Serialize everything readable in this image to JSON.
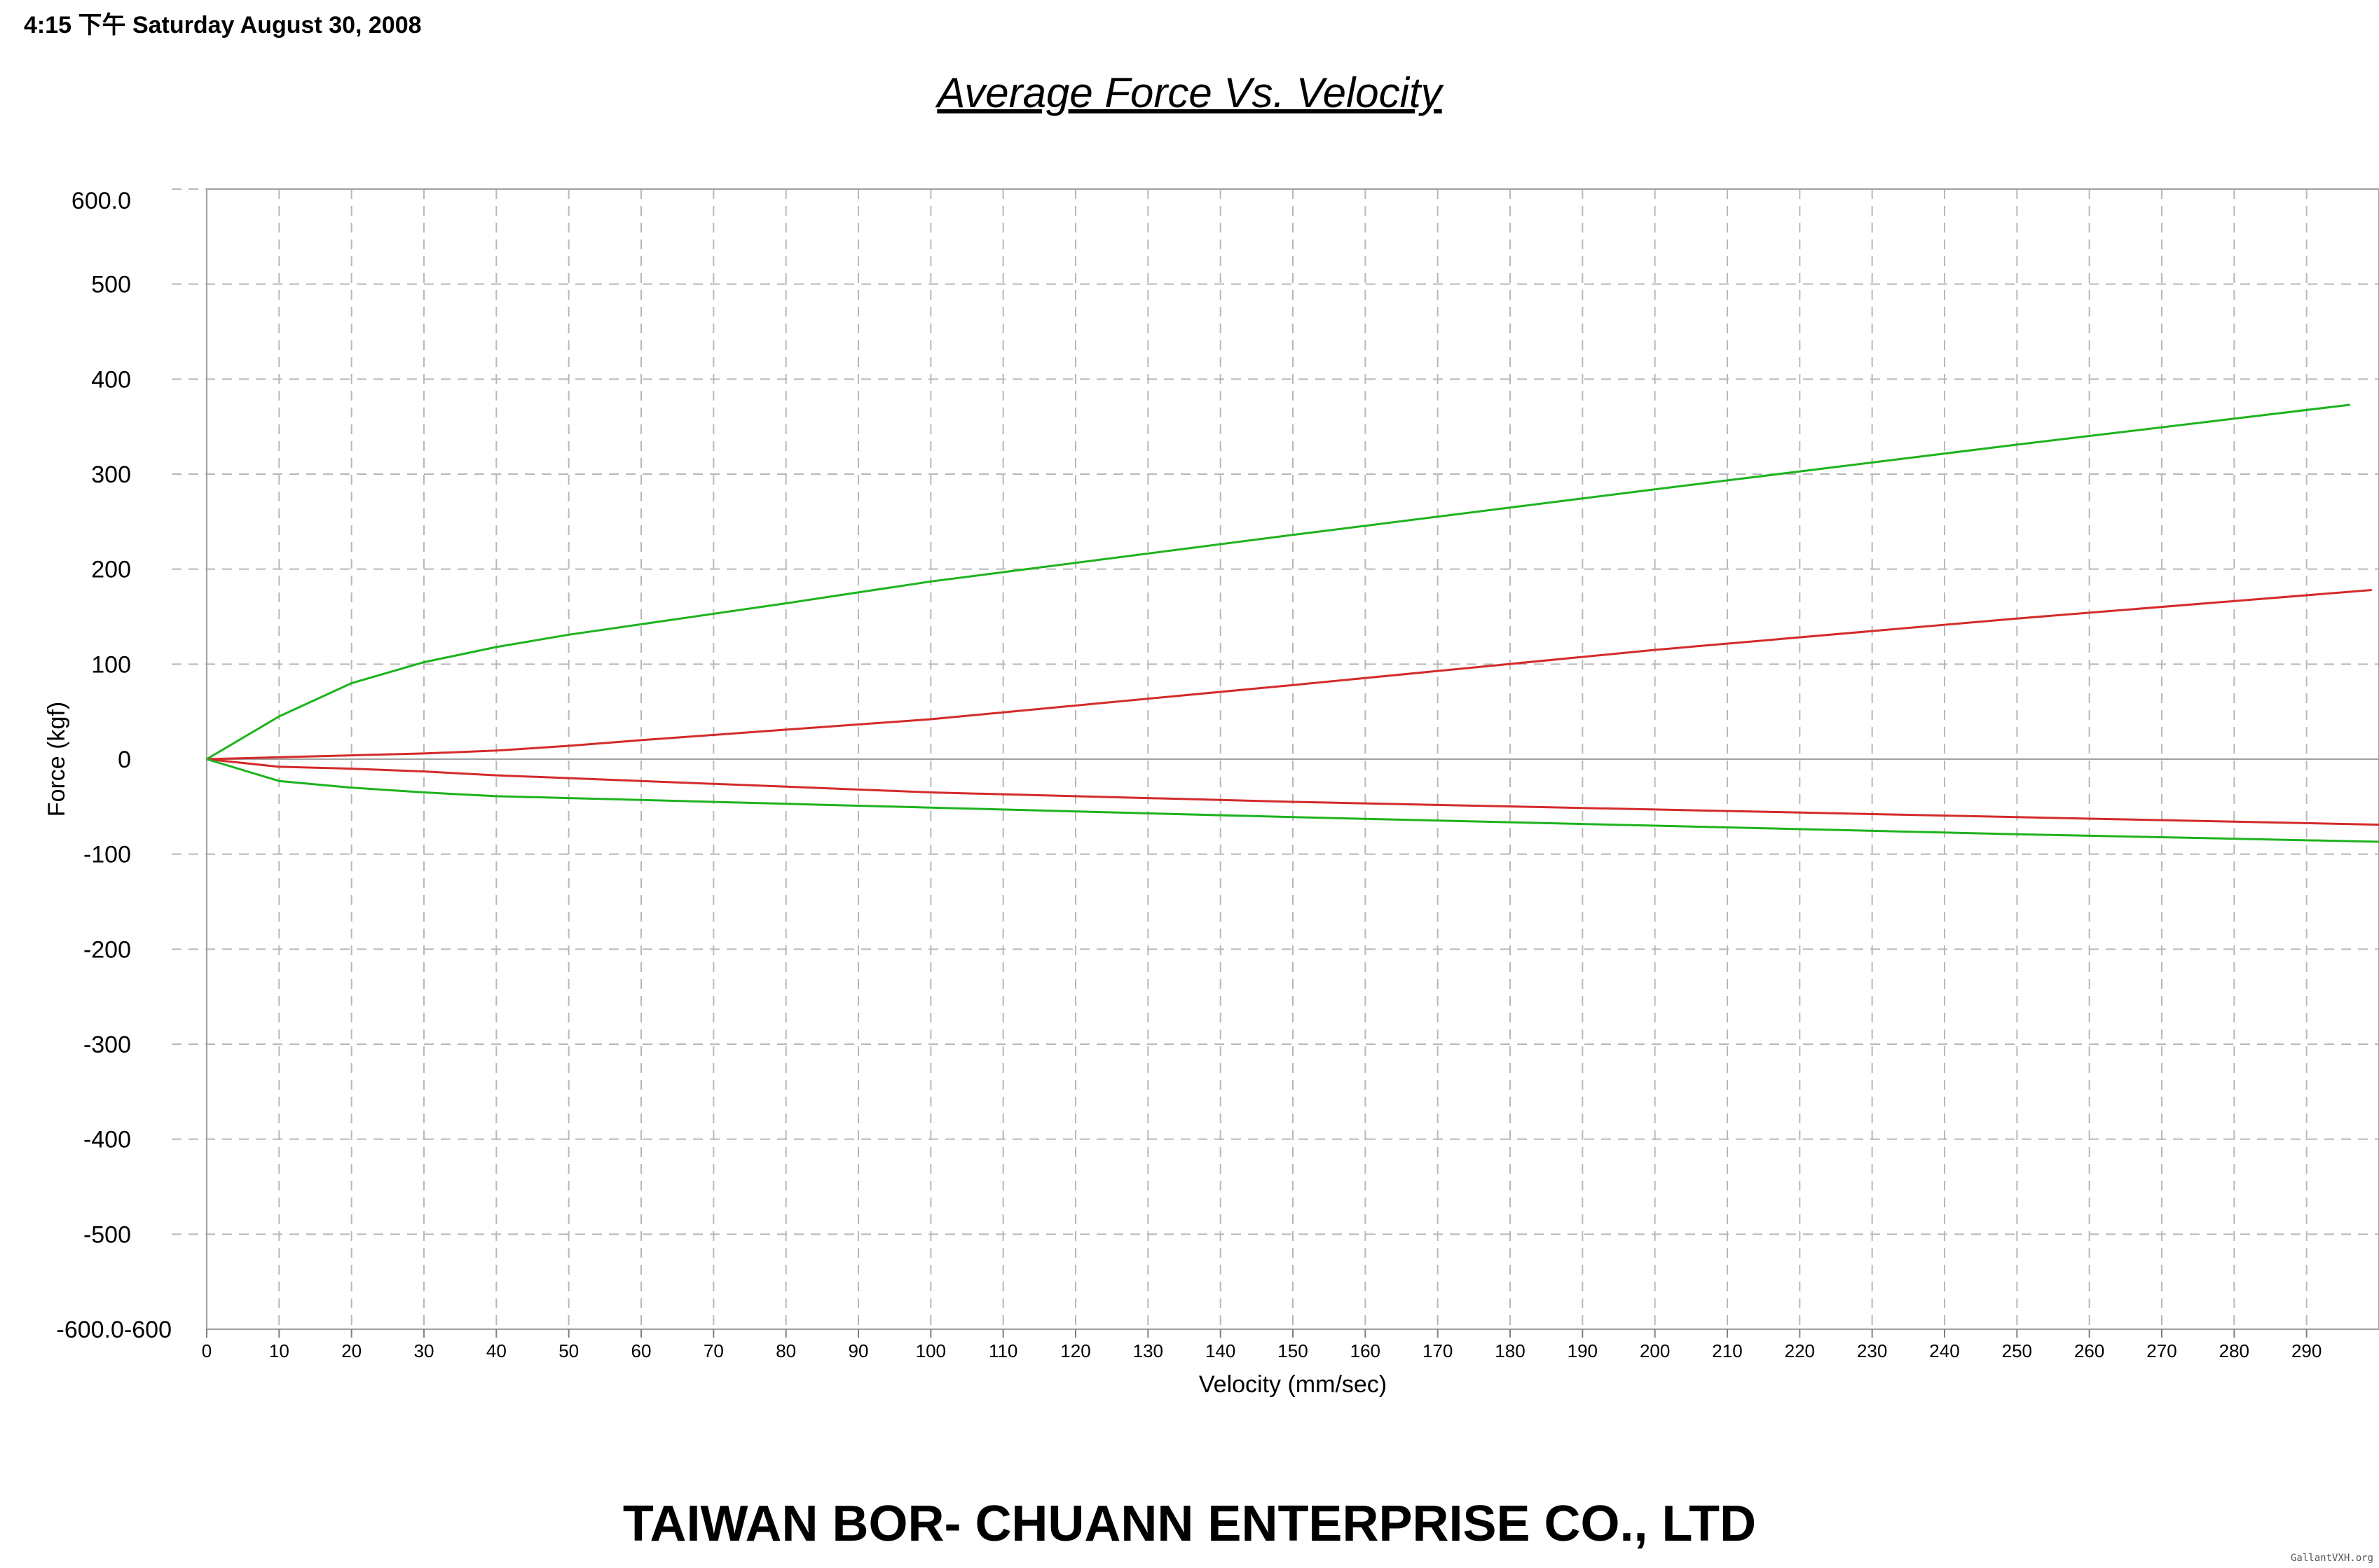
{
  "header": {
    "timestamp": "4:15 下午 Saturday August 30, 2008"
  },
  "footer": {
    "company": "TAIWAN BOR- CHUANN ENTERPRISE CO., LTD",
    "watermark": "GallantVXH.org"
  },
  "chart_data": {
    "type": "line",
    "title": "Average Force Vs. Velocity",
    "xlabel": "Velocity (mm/sec)",
    "ylabel": "Force (kgf)",
    "xlim": [
      0,
      300
    ],
    "ylim": [
      -600,
      600
    ],
    "grid": true,
    "legend": "none",
    "x_ticks": [
      0,
      10,
      20,
      30,
      40,
      50,
      60,
      70,
      80,
      90,
      100,
      110,
      120,
      130,
      140,
      150,
      160,
      170,
      180,
      190,
      200,
      210,
      220,
      230,
      240,
      250,
      260,
      270,
      280,
      290
    ],
    "x_tick_labels": [
      "0",
      "10",
      "20",
      "30",
      "40",
      "50",
      "60",
      "70",
      "80",
      "90",
      "100",
      "110",
      "120",
      "130",
      "140",
      "150",
      "160",
      "170",
      "180",
      "190",
      "200",
      "210",
      "220",
      "230",
      "240",
      "250",
      "260",
      "270",
      "280",
      "290"
    ],
    "y_ticks": [
      600,
      500,
      400,
      300,
      200,
      100,
      0,
      -100,
      -200,
      -300,
      -400,
      -500,
      -600
    ],
    "y_tick_labels": [
      "600.0",
      "500",
      "400",
      "300",
      "200",
      "100",
      "0",
      "-100",
      "-200",
      "-300",
      "-400",
      "-500",
      "-600.0-600"
    ],
    "series": [
      {
        "color": "#1db31d",
        "x": [
          0,
          10,
          20,
          30,
          40,
          50,
          60,
          80,
          100,
          150,
          200,
          250,
          296
        ],
        "y": [
          0,
          45,
          80,
          102,
          118,
          131,
          142,
          164,
          187,
          236,
          284,
          331,
          373
        ]
      },
      {
        "color": "#d42a2a",
        "x": [
          0,
          10,
          20,
          30,
          40,
          50,
          60,
          80,
          100,
          150,
          200,
          250,
          299
        ],
        "y": [
          0,
          2,
          4,
          6,
          9,
          14,
          20,
          31,
          42,
          78,
          115,
          148,
          178
        ]
      },
      {
        "color": "#d42a2a",
        "x": [
          0,
          10,
          20,
          30,
          40,
          50,
          60,
          80,
          100,
          150,
          200,
          250,
          300
        ],
        "y": [
          0,
          -8,
          -10,
          -13,
          -17,
          -20,
          -23,
          -29,
          -35,
          -45,
          -53,
          -61,
          -69
        ]
      },
      {
        "color": "#1db31d",
        "x": [
          0,
          10,
          20,
          30,
          40,
          50,
          60,
          80,
          100,
          150,
          200,
          250,
          300
        ],
        "y": [
          0,
          -23,
          -30,
          -35,
          -39,
          -41,
          -43,
          -47,
          -51,
          -61,
          -70,
          -79,
          -87
        ]
      }
    ]
  }
}
